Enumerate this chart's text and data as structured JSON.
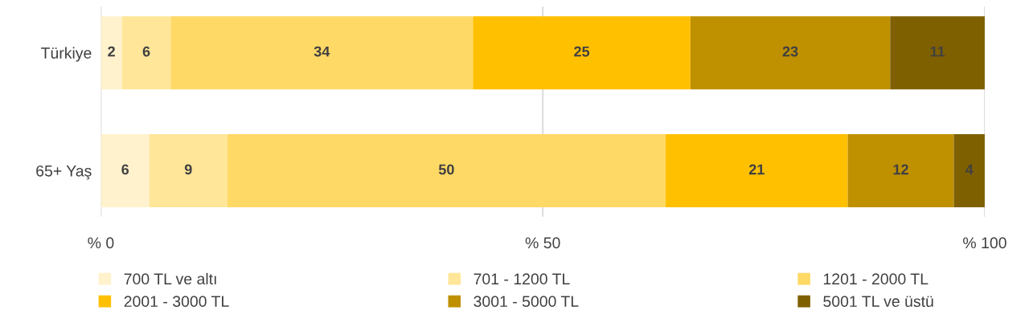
{
  "chart_data": {
    "type": "bar",
    "orientation": "horizontal",
    "stacked": true,
    "categories": [
      "Türkiye",
      "65+ Yaş"
    ],
    "series": [
      {
        "name": "700 TL ve altı",
        "color": "#fff2cc",
        "values": [
          2.4,
          5.5
        ],
        "value_labels": [
          "2",
          "6"
        ]
      },
      {
        "name": "701 - 1200 TL",
        "color": "#ffe699",
        "values": [
          5.5,
          8.8
        ],
        "value_labels": [
          "6",
          "9"
        ]
      },
      {
        "name": "1201 - 2000 TL",
        "color": "#ffd966",
        "values": [
          34.2,
          49.6
        ],
        "value_labels": [
          "34",
          "50"
        ]
      },
      {
        "name": "2001 - 3000 TL",
        "color": "#ffc000",
        "values": [
          24.6,
          20.6
        ],
        "value_labels": [
          "25",
          "21"
        ]
      },
      {
        "name": "3001 - 5000 TL",
        "color": "#bf9000",
        "values": [
          22.6,
          12.0
        ],
        "value_labels": [
          "23",
          "12"
        ]
      },
      {
        "name": "5001 TL ve üstü",
        "color": "#7f6000",
        "values": [
          10.7,
          3.5
        ],
        "value_labels": [
          "11",
          "4"
        ]
      }
    ],
    "xlim": [
      0,
      100
    ],
    "xticks": [
      {
        "value": 0,
        "label": "% 0"
      },
      {
        "value": 50,
        "label": "% 50"
      },
      {
        "value": 100,
        "label": "% 100"
      }
    ],
    "grid": "x",
    "legend": "bottom"
  }
}
